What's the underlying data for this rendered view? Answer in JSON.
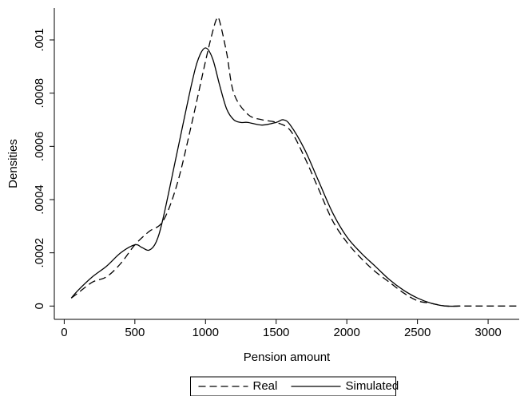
{
  "chart_data": {
    "type": "line",
    "x_label": "Pension amount",
    "y_label": "Densities",
    "xlim": [
      -70,
      3220
    ],
    "xticks": [
      0,
      500,
      1000,
      1500,
      2000,
      2500,
      3000
    ],
    "ylim": [
      -5e-05,
      0.00112
    ],
    "yticks": [
      0,
      {
        "value": 0.0002,
        "label": ".0002"
      },
      {
        "value": 0.0004,
        "label": ".0004"
      },
      {
        "value": 0.0006,
        "label": ".0006"
      },
      {
        "value": 0.0008,
        "label": ".0008"
      },
      {
        "value": 0.001,
        "label": ".001"
      }
    ],
    "grid": false,
    "legend": "bottom",
    "series": [
      {
        "name": "Real",
        "color": "#000000",
        "line_style": "dashed",
        "x": [
          50,
          100,
          200,
          300,
          400,
          500,
          600,
          700,
          800,
          900,
          1000,
          1050,
          1080,
          1100,
          1150,
          1200,
          1300,
          1400,
          1500,
          1600,
          1700,
          1800,
          1900,
          2000,
          2100,
          2200,
          2300,
          2400,
          2500,
          2600,
          2700,
          2800,
          2900,
          3000,
          3200
        ],
        "values": [
          3e-05,
          5e-05,
          9e-05,
          0.00011,
          0.00016,
          0.00023,
          0.00028,
          0.00032,
          0.00046,
          0.00068,
          0.00092,
          0.00103,
          0.00108,
          0.00107,
          0.00095,
          0.0008,
          0.00072,
          0.0007,
          0.00069,
          0.00066,
          0.00056,
          0.00044,
          0.00032,
          0.00024,
          0.00018,
          0.00013,
          9e-05,
          5e-05,
          2e-05,
          1e-05,
          0,
          0,
          0,
          0,
          0
        ]
      },
      {
        "name": "Simulated",
        "color": "#000000",
        "line_style": "solid",
        "x": [
          50,
          100,
          200,
          300,
          400,
          500,
          550,
          600,
          650,
          700,
          800,
          900,
          950,
          1000,
          1050,
          1100,
          1150,
          1200,
          1250,
          1300,
          1400,
          1500,
          1550,
          1600,
          1700,
          1800,
          1900,
          2000,
          2100,
          2200,
          2300,
          2400,
          2500,
          2600,
          2700,
          2800
        ],
        "values": [
          3e-05,
          6e-05,
          0.00011,
          0.00015,
          0.0002,
          0.00023,
          0.00022,
          0.00021,
          0.00024,
          0.00033,
          0.00058,
          0.00083,
          0.00093,
          0.00097,
          0.00093,
          0.00083,
          0.00074,
          0.0007,
          0.00069,
          0.00069,
          0.00068,
          0.00069,
          0.0007,
          0.00068,
          0.00059,
          0.00047,
          0.00035,
          0.00026,
          0.0002,
          0.00015,
          0.0001,
          6e-05,
          3e-05,
          1e-05,
          0,
          0
        ]
      }
    ]
  }
}
